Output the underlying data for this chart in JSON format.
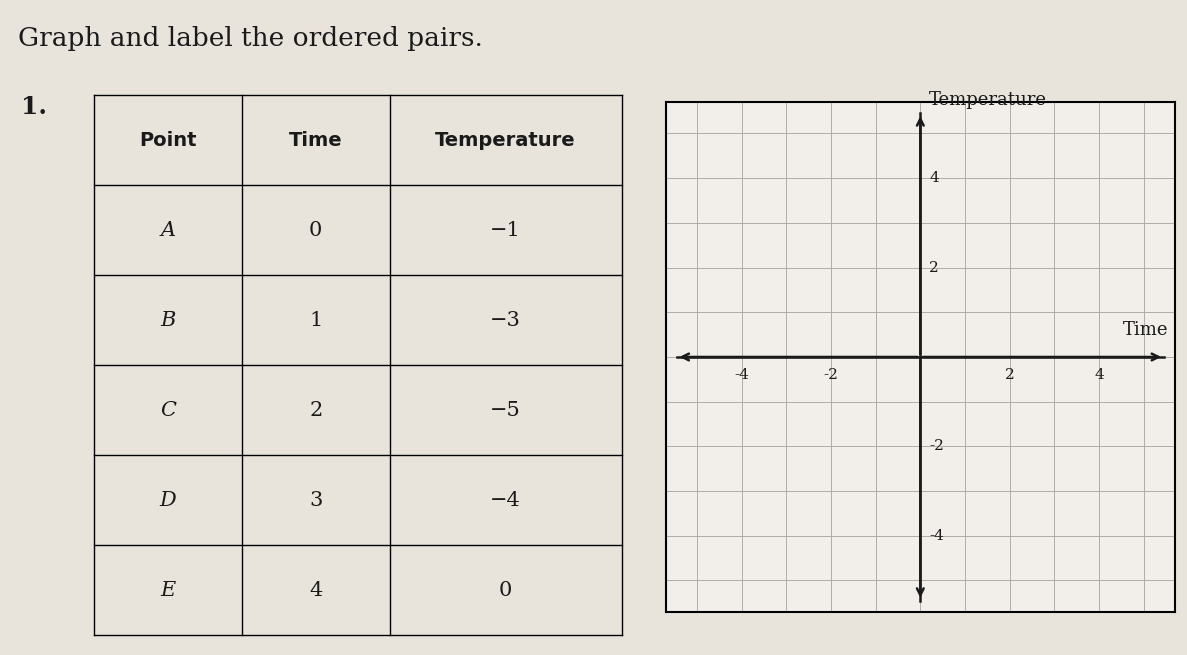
{
  "title": "Graph and label the ordered pairs.",
  "problem_number": "1.",
  "table_headers": [
    "Point",
    "Time",
    "Temperature"
  ],
  "table_rows": [
    [
      "A",
      "0",
      "−1"
    ],
    [
      "B",
      "1",
      "−3"
    ],
    [
      "C",
      "2",
      "−5"
    ],
    [
      "D",
      "3",
      "−4"
    ],
    [
      "E",
      "4",
      "0"
    ]
  ],
  "x_label": "Time",
  "y_label": "Temperature",
  "x_range": [
    -5,
    5
  ],
  "y_range": [
    -5,
    5
  ],
  "bg_color": "#e8e4dc",
  "paper_color": "#f2eeea",
  "grid_color": "#b0aba4",
  "axis_color": "#1a1a1a",
  "text_color": "#1a1a1a",
  "tick_labels": [
    -4,
    -2,
    2,
    4
  ],
  "grid_minor_step": 1,
  "title_fontsize": 19,
  "table_header_fontsize": 14,
  "table_data_fontsize": 15,
  "axis_label_fontsize": 13
}
